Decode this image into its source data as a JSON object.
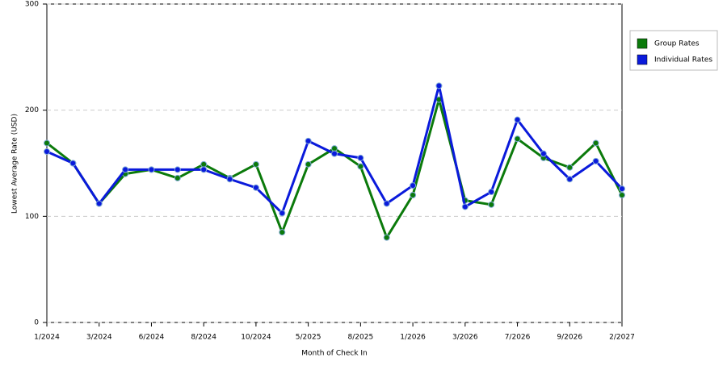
{
  "chart_data": {
    "type": "line",
    "x_label": "Month of Check In",
    "y_label": "Lowest Average Rate (USD)",
    "categories": [
      "1/2024",
      null,
      "3/2024",
      null,
      "6/2024",
      null,
      "8/2024",
      null,
      "10/2024",
      null,
      "5/2025",
      null,
      "8/2025",
      null,
      "1/2026",
      null,
      "3/2026",
      null,
      "7/2026",
      null,
      "9/2026",
      null,
      "2/2027"
    ],
    "series": [
      {
        "name": "Group Rates",
        "color": "#0b7a0b",
        "values": [
          169,
          150,
          112,
          140,
          144,
          136,
          149,
          136,
          149,
          85,
          149,
          164,
          147,
          80,
          120,
          210,
          115,
          111,
          173,
          155,
          146,
          169,
          120
        ]
      },
      {
        "name": "Individual Rates",
        "color": "#0a1adb",
        "values": [
          161,
          150,
          112,
          144,
          144,
          144,
          144,
          135,
          127,
          103,
          171,
          159,
          155,
          112,
          129,
          223,
          109,
          123,
          191,
          159,
          135,
          152,
          126
        ]
      }
    ],
    "ylim": [
      0,
      300
    ],
    "yticks": [
      0,
      100,
      200,
      300
    ],
    "grid": true,
    "legend": "right"
  }
}
